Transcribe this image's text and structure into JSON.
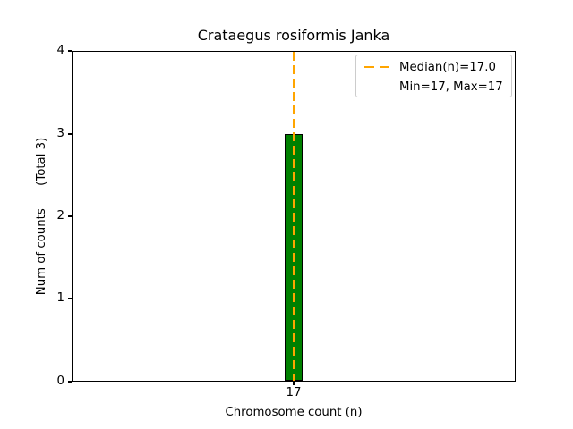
{
  "chart_data": {
    "type": "bar",
    "title": "Crataegus rosiformis Janka",
    "xlabel": "Chromosome count (n)",
    "ylabel": "Num of counts      (Total 3)",
    "categories": [
      "17"
    ],
    "values": [
      3
    ],
    "total_counts": 3,
    "median_n": 17.0,
    "min_n": 17,
    "max_n": 17,
    "ylim": [
      0,
      4
    ],
    "yticks": [
      0,
      1,
      2,
      3,
      4
    ],
    "ytick_labels_top_to_bottom": [
      "4",
      "3",
      "2",
      "1",
      "0"
    ],
    "xtick_labels": [
      "17"
    ],
    "grid": false,
    "legend": {
      "position": "upper-right",
      "entries": [
        {
          "sample": "orange-dashed-line",
          "label": "Median(n)=17.0"
        },
        {
          "sample": "none",
          "label": "Min=17, Max=17"
        }
      ]
    },
    "colors": {
      "bar_fill": "#008000",
      "bar_edge": "#000000",
      "median_line": "#ffa500",
      "axis": "#000000",
      "text": "#000000",
      "legend_border": "#cccccc"
    }
  }
}
